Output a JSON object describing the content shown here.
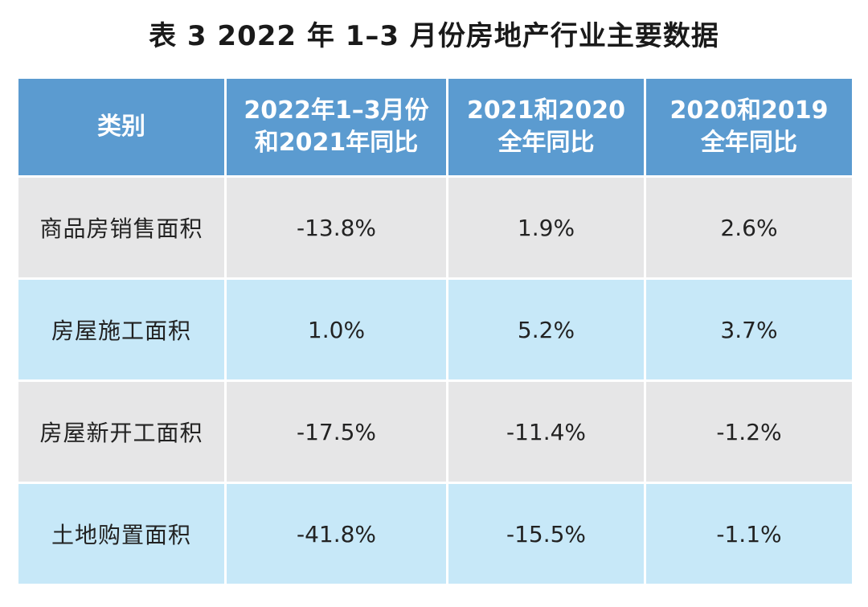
{
  "title": "表 3  2022 年 1–3 月份房地产行业主要数据",
  "table": {
    "headers": [
      {
        "lines": [
          "类别"
        ]
      },
      {
        "lines": [
          "2022年1–3月份",
          "和2021年同比"
        ]
      },
      {
        "lines": [
          "2021和2020",
          "全年同比"
        ]
      },
      {
        "lines": [
          "2020和2019",
          "全年同比"
        ]
      }
    ],
    "rows": [
      {
        "label": "商品房销售面积",
        "values": [
          "-13.8%",
          "1.9%",
          "2.6%"
        ]
      },
      {
        "label": "房屋施工面积",
        "values": [
          "1.0%",
          "5.2%",
          "3.7%"
        ]
      },
      {
        "label": "房屋新开工面积",
        "values": [
          "-17.5%",
          "-11.4%",
          "-1.2%"
        ]
      },
      {
        "label": "土地购置面积",
        "values": [
          "-41.8%",
          "-15.5%",
          "-1.1%"
        ]
      }
    ]
  },
  "colors": {
    "header_bg": "#5b9bd0",
    "row_gray": "#e6e6e7",
    "row_blue": "#c7e8f8"
  }
}
